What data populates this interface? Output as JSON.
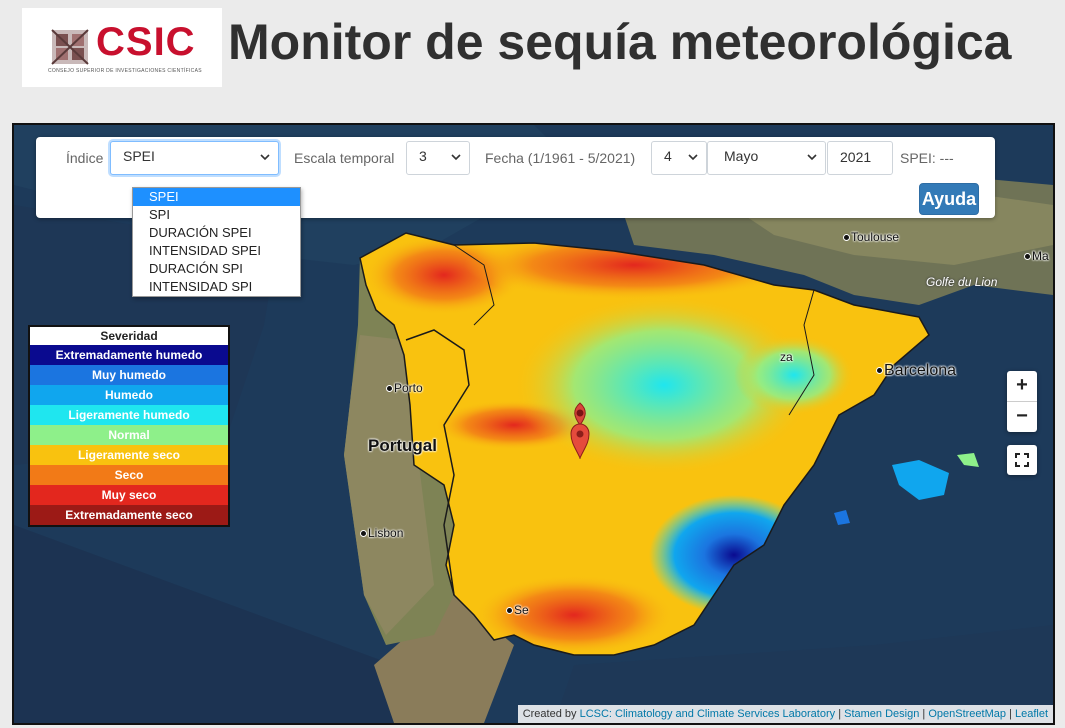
{
  "header": {
    "logo_text": "CSIC",
    "logo_subtitle": "CONSEJO SUPERIOR DE INVESTIGACIONES CIENTÍFICAS",
    "title": "Monitor de sequía meteorológica"
  },
  "controls": {
    "index_label": "Índice",
    "index_selected": "SPEI",
    "index_options": [
      "SPEI",
      "SPI",
      "DURACIÓN SPEI",
      "INTENSIDAD SPEI",
      "DURACIÓN SPI",
      "INTENSIDAD SPI"
    ],
    "scale_label": "Escala temporal",
    "scale_value": "3",
    "date_label": "Fecha (1/1961 - 5/2021)",
    "day_value": "4",
    "month_value": "Mayo",
    "year_value": "2021",
    "spei_readout": "SPEI: ---",
    "help_label": "Ayuda"
  },
  "legend": {
    "title": "Severidad",
    "items": [
      {
        "label": "Extremadamente humedo",
        "color": "#0a0a8f"
      },
      {
        "label": "Muy humedo",
        "color": "#1b75e0"
      },
      {
        "label": "Humedo",
        "color": "#10a6ee"
      },
      {
        "label": "Ligeramente humedo",
        "color": "#1fe6ef"
      },
      {
        "label": "Normal",
        "color": "#8ef08a"
      },
      {
        "label": "Ligeramente seco",
        "color": "#f9c20f"
      },
      {
        "label": "Seco",
        "color": "#f27a17"
      },
      {
        "label": "Muy seco",
        "color": "#e3271e"
      },
      {
        "label": "Extremadamente seco",
        "color": "#9c1a16"
      }
    ]
  },
  "map": {
    "zoom_in": "+",
    "zoom_out": "−",
    "places": {
      "toulouse": "Toulouse",
      "ma": "Ma",
      "golfe": "Golfe du Lion",
      "za": "za",
      "barcelona": "Barcelona",
      "porto": "Porto",
      "portugal": "Portugal",
      "lisbon": "Lisbon",
      "se": "Se"
    },
    "attribution": {
      "prefix": "Created by",
      "lcsc": "LCSC: Climatology and Climate Services Laboratory",
      "stamen": "Stamen Design",
      "osm": "OpenStreetMap",
      "leaflet": "Leaflet"
    }
  }
}
